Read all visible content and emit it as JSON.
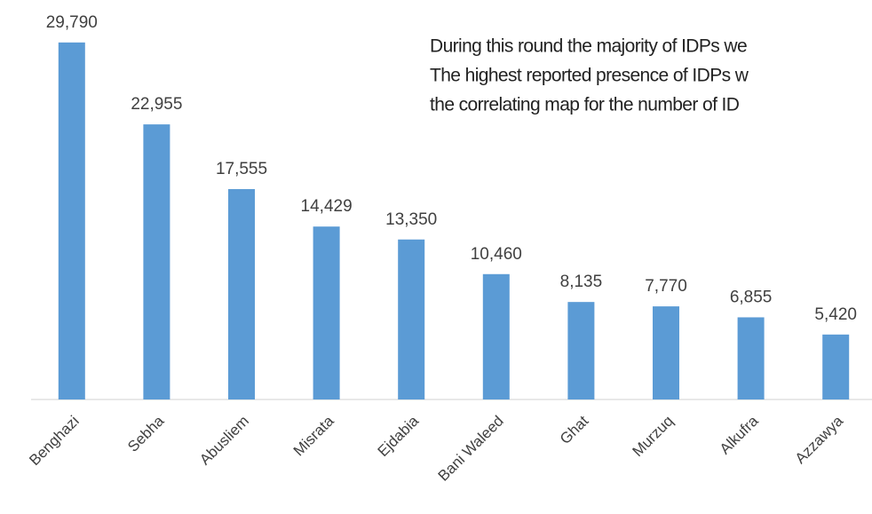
{
  "chart_data": {
    "type": "bar",
    "categories": [
      "Benghazi",
      "Sebha",
      "Abusliem",
      "Misrata",
      "Ejdabia",
      "Bani Waleed",
      "Ghat",
      "Murzuq",
      "Alkufra",
      "Azzawya"
    ],
    "values": [
      29790,
      22955,
      17555,
      14429,
      13350,
      10460,
      8135,
      7770,
      6855,
      5420
    ],
    "value_labels": [
      "29,790",
      "22,955",
      "17,555",
      "14,429",
      "13,350",
      "10,460",
      "8,135",
      "7,770",
      "6,855",
      "5,420"
    ],
    "color": "#5b9bd5",
    "ylim": [
      0,
      30000
    ],
    "annotations": [
      "During this round the majority of IDPs we",
      "The highest reported presence of IDPs w",
      "the correlating map for the number of ID"
    ]
  }
}
